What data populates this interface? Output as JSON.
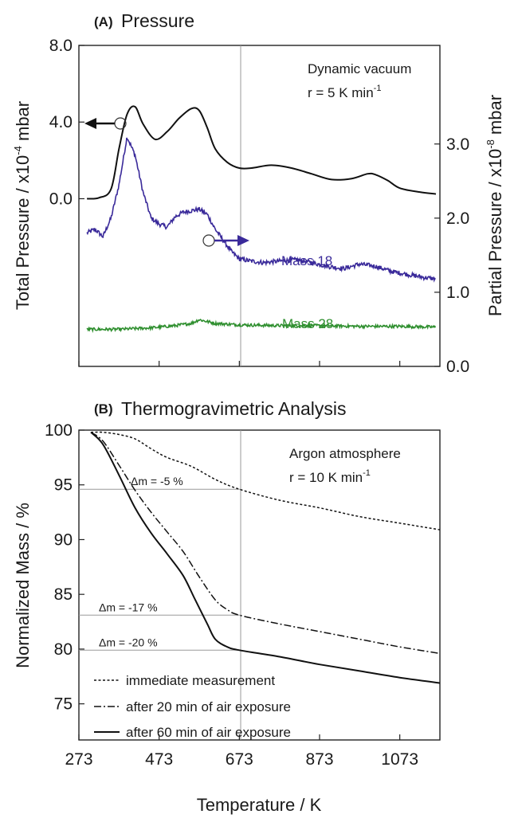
{
  "chart_data": [
    {
      "panel_letter": "(A)",
      "title": "Pressure",
      "type": "line",
      "ylabel_left": "Total Pressure / x10",
      "ylabel_left_exp": "-4",
      "ylabel_left_unit": " mbar",
      "ylabel_right": "Partial Pressure / x10",
      "ylabel_right_exp": "-8",
      "ylabel_right_unit": " mbar",
      "xlim": [
        273,
        1173
      ],
      "ylim_left": [
        -8.75,
        8.0
      ],
      "ylim_right": [
        0.0,
        4.33
      ],
      "yticks_left": [
        0.0,
        4.0,
        8.0
      ],
      "yticks_left_labels": [
        "0.0",
        "4.0",
        "8.0"
      ],
      "yticks_right": [
        0.0,
        1.0,
        2.0,
        3.0
      ],
      "yticks_right_labels": [
        "0.0",
        "1.0",
        "2.0",
        "3.0"
      ],
      "annotation_line1": "Dynamic vacuum",
      "annotation_line2_prefix": "r = 5 K min",
      "annotation_line2_exp": "-1",
      "mass18_label": "Mass 18",
      "mass28_label": "Mass 28",
      "series": [
        {
          "name": "",
          "axis": "left",
          "color": "#111111",
          "x": [
            293,
            323,
            353,
            373,
            393,
            413,
            433,
            463,
            493,
            523,
            553,
            573,
            593,
            613,
            643,
            673,
            703,
            753,
            803,
            853,
            903,
            953,
            993,
            1013,
            1043,
            1073,
            1123,
            1163
          ],
          "y": [
            0.0,
            0.05,
            0.5,
            2.6,
            4.4,
            4.8,
            3.9,
            3.1,
            3.5,
            4.2,
            4.7,
            4.6,
            3.7,
            2.6,
            1.9,
            1.6,
            1.6,
            1.75,
            1.6,
            1.3,
            1.0,
            1.05,
            1.3,
            1.25,
            0.95,
            0.55,
            0.35,
            0.25
          ]
        },
        {
          "name": "Mass 18",
          "axis": "right",
          "color": "#3a2a9a",
          "x": [
            293,
            313,
            333,
            353,
            373,
            393,
            413,
            433,
            453,
            473,
            493,
            513,
            533,
            553,
            573,
            593,
            613,
            633,
            653,
            673,
            703,
            733,
            773,
            813,
            853,
            893,
            933,
            973,
            1013,
            1053,
            1093,
            1133,
            1163
          ],
          "y": [
            1.8,
            1.85,
            1.75,
            2.0,
            2.45,
            3.1,
            2.85,
            2.35,
            2.0,
            1.92,
            1.88,
            2.02,
            2.08,
            2.1,
            2.12,
            2.05,
            1.85,
            1.7,
            1.55,
            1.45,
            1.42,
            1.4,
            1.42,
            1.44,
            1.4,
            1.35,
            1.32,
            1.38,
            1.35,
            1.28,
            1.24,
            1.2,
            1.18
          ]
        },
        {
          "name": "Mass 28",
          "axis": "right",
          "color": "#2f8f2f",
          "x": [
            293,
            373,
            453,
            513,
            553,
            573,
            613,
            673,
            773,
            873,
            973,
            1073,
            1163
          ],
          "y": [
            0.5,
            0.5,
            0.52,
            0.55,
            0.58,
            0.63,
            0.58,
            0.56,
            0.55,
            0.55,
            0.54,
            0.54,
            0.53
          ]
        }
      ]
    },
    {
      "panel_letter": "(B)",
      "title": "Thermogravimetric Analysis",
      "type": "line",
      "xlabel": "Temperature / K",
      "ylabel": "Normalized Mass / %",
      "xlim": [
        273,
        1173
      ],
      "ylim": [
        71.7,
        100
      ],
      "xticks": [
        273,
        473,
        673,
        873,
        1073
      ],
      "xticks_labels": [
        "273",
        "473",
        "673",
        "873",
        "1073"
      ],
      "yticks": [
        75,
        80,
        85,
        90,
        95,
        100
      ],
      "yticks_labels": [
        "75",
        "80",
        "85",
        "90",
        "95",
        "100"
      ],
      "annotation_line1": "Argon atmosphere",
      "annotation_line2_prefix": "r = 10 K min",
      "annotation_line2_exp": "-1",
      "delta_labels": [
        {
          "text": "Δm = -5 %",
          "y": 94.6
        },
        {
          "text": "Δm = -17 %",
          "y": 83.1
        },
        {
          "text": "Δm = -20 %",
          "y": 79.9
        }
      ],
      "series": [
        {
          "name": "immediate measurement",
          "dash": "dotted",
          "color": "#111111",
          "x": [
            303,
            333,
            373,
            413,
            453,
            493,
            553,
            613,
            673,
            773,
            873,
            973,
            1073,
            1173
          ],
          "y": [
            99.8,
            99.8,
            99.6,
            99.2,
            98.3,
            97.5,
            96.7,
            95.5,
            94.6,
            93.6,
            92.9,
            92.1,
            91.5,
            90.9
          ]
        },
        {
          "name": "after 20 min of air exposure",
          "dash": "dashdot",
          "color": "#111111",
          "x": [
            303,
            333,
            373,
            413,
            453,
            493,
            533,
            573,
            613,
            643,
            673,
            773,
            873,
            973,
            1073,
            1173
          ],
          "y": [
            99.8,
            99.0,
            96.8,
            94.5,
            92.5,
            90.7,
            88.9,
            86.6,
            84.5,
            83.6,
            83.1,
            82.3,
            81.6,
            80.9,
            80.2,
            79.6
          ]
        },
        {
          "name": "after 60 min of air exposure",
          "dash": "solid",
          "color": "#111111",
          "x": [
            303,
            333,
            373,
            413,
            453,
            493,
            533,
            563,
            593,
            613,
            643,
            673,
            773,
            873,
            973,
            1073,
            1173
          ],
          "y": [
            99.8,
            98.7,
            95.9,
            92.9,
            90.6,
            88.7,
            86.7,
            84.5,
            82.3,
            80.9,
            80.2,
            79.9,
            79.3,
            78.6,
            78.0,
            77.4,
            76.9
          ]
        }
      ]
    }
  ]
}
